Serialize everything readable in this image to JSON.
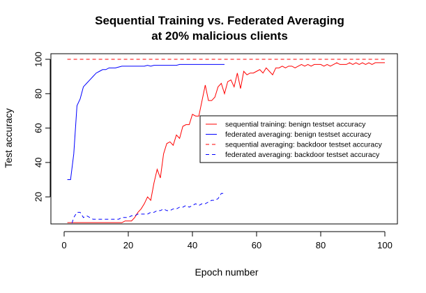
{
  "chart_data": {
    "type": "line",
    "title": "Sequential Training vs. Federated Averaging",
    "subtitle": "at 20% malicious clients",
    "xlabel": "Epoch number",
    "ylabel": "Test accuracy",
    "xlim": [
      0,
      100
    ],
    "ylim": [
      0,
      100
    ],
    "xticks": [
      0,
      20,
      40,
      60,
      80,
      100
    ],
    "yticks": [
      20,
      40,
      60,
      80,
      100
    ],
    "grid": false,
    "legend_position": "right",
    "series": [
      {
        "name": "sequential training: benign testset accuracy",
        "color": "#ff0000",
        "dash": "solid",
        "x": [
          1,
          2,
          3,
          4,
          5,
          6,
          7,
          8,
          9,
          10,
          11,
          12,
          13,
          14,
          15,
          16,
          17,
          18,
          19,
          20,
          21,
          22,
          23,
          24,
          25,
          26,
          27,
          28,
          29,
          30,
          31,
          32,
          33,
          34,
          35,
          36,
          37,
          38,
          39,
          40,
          41,
          42,
          43,
          44,
          45,
          46,
          47,
          48,
          49,
          50,
          51,
          52,
          53,
          54,
          55,
          56,
          57,
          58,
          59,
          60,
          61,
          62,
          63,
          64,
          65,
          66,
          67,
          68,
          69,
          70,
          71,
          72,
          73,
          74,
          75,
          76,
          77,
          78,
          79,
          80,
          81,
          82,
          83,
          84,
          85,
          86,
          87,
          88,
          89,
          90,
          91,
          92,
          93,
          94,
          95,
          96,
          97,
          98,
          99,
          100
        ],
        "values": [
          5,
          5,
          5,
          5,
          5,
          5,
          5,
          5,
          5,
          5,
          5,
          5,
          5,
          5,
          5,
          5,
          5,
          5,
          6,
          6,
          6,
          8,
          11,
          13,
          16,
          20,
          18,
          28,
          36,
          31,
          45,
          51,
          52,
          50,
          56,
          54,
          61,
          62,
          62,
          68,
          67,
          67,
          76,
          85,
          76,
          76,
          78,
          84,
          86,
          80,
          87,
          88,
          84,
          92,
          83,
          93,
          91,
          92,
          92,
          93,
          94,
          92,
          95,
          93,
          91,
          95,
          95,
          96,
          95,
          96,
          96,
          95,
          96,
          97,
          96,
          97,
          96,
          97,
          97,
          97,
          96,
          97,
          96,
          97,
          98,
          97,
          97,
          97,
          98,
          97,
          98,
          97,
          98,
          97,
          98,
          97,
          98,
          98,
          98,
          98
        ]
      },
      {
        "name": "federated averaging: benign testset accuracy",
        "color": "#0000ff",
        "dash": "solid",
        "x": [
          1,
          2,
          3,
          4,
          5,
          6,
          7,
          8,
          9,
          10,
          11,
          12,
          13,
          14,
          15,
          16,
          17,
          18,
          19,
          20,
          21,
          22,
          23,
          24,
          25,
          26,
          27,
          28,
          29,
          30,
          31,
          32,
          33,
          34,
          35,
          36,
          37,
          38,
          39,
          40,
          41,
          42,
          43,
          44,
          45,
          46,
          47,
          48,
          49,
          50
        ],
        "values": [
          30,
          30,
          45,
          73,
          77,
          84,
          86,
          88,
          90,
          92,
          93,
          94,
          94,
          95,
          95,
          95,
          95.5,
          96,
          96,
          96,
          96,
          96,
          96,
          96,
          96,
          96.5,
          96,
          96.5,
          96.5,
          96.5,
          96.5,
          96.5,
          96.5,
          96.5,
          96.5,
          97,
          97,
          97,
          97,
          97,
          97,
          97,
          97,
          97,
          97,
          97,
          97,
          97,
          97,
          97
        ]
      },
      {
        "name": "sequential averaging: backdoor testset accuracy",
        "color": "#ff0000",
        "dash": "dashed",
        "x": [
          1,
          100
        ],
        "values": [
          100,
          100
        ]
      },
      {
        "name": "federated averaging: backdoor testset accuracy",
        "color": "#0000ff",
        "dash": "dashed",
        "x": [
          1,
          2,
          3,
          4,
          5,
          6,
          7,
          8,
          9,
          10,
          11,
          12,
          13,
          14,
          15,
          16,
          17,
          18,
          19,
          20,
          21,
          22,
          23,
          24,
          25,
          26,
          27,
          28,
          29,
          30,
          31,
          32,
          33,
          34,
          35,
          36,
          37,
          38,
          39,
          40,
          41,
          42,
          43,
          44,
          45,
          46,
          47,
          48,
          49,
          50
        ],
        "values": [
          -2,
          2,
          8,
          11,
          11,
          8,
          9,
          8,
          7,
          7,
          7,
          7,
          7,
          7,
          7,
          7,
          7,
          8,
          8,
          8,
          9,
          9,
          10,
          10,
          10,
          10,
          11,
          11,
          12,
          12,
          13,
          12,
          12,
          13,
          13,
          14,
          14,
          15,
          14,
          15,
          16,
          15,
          16,
          16,
          17,
          18,
          18,
          19,
          22,
          22
        ]
      }
    ]
  }
}
